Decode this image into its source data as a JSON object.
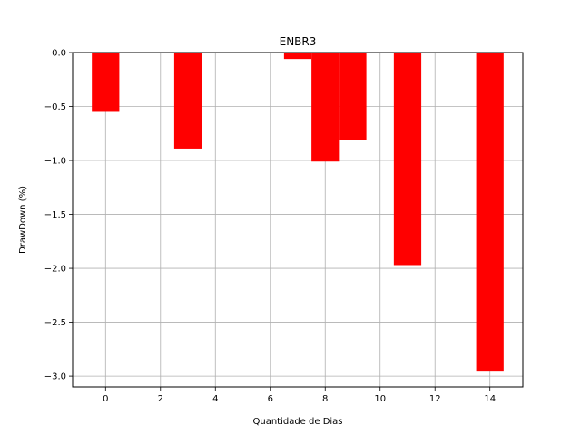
{
  "chart_data": {
    "type": "bar",
    "title": "ENBR3",
    "xlabel": "Quantidade de Dias",
    "ylabel": "DrawDown (%)",
    "xlim": [
      -1.2,
      15.2
    ],
    "ylim": [
      -3.1,
      0.0
    ],
    "xticks": [
      0,
      2,
      4,
      6,
      8,
      10,
      12,
      14
    ],
    "yticks": [
      0.0,
      -0.5,
      -1.0,
      -1.5,
      -2.0,
      -2.5,
      -3.0
    ],
    "ytick_labels": [
      "0.0",
      "−0.5",
      "−1.0",
      "−1.5",
      "−2.0",
      "−2.5",
      "−3.0"
    ],
    "grid": true,
    "bar_color": "#ff0000",
    "bar_width": 1.0,
    "bars": [
      {
        "x": 0,
        "value": -0.55
      },
      {
        "x": 3,
        "value": -0.89
      },
      {
        "x": 7,
        "value": -0.06
      },
      {
        "x": 8,
        "value": -1.01
      },
      {
        "x": 9,
        "value": -0.81
      },
      {
        "x": 11,
        "value": -1.97
      },
      {
        "x": 14,
        "value": -2.95
      }
    ]
  }
}
